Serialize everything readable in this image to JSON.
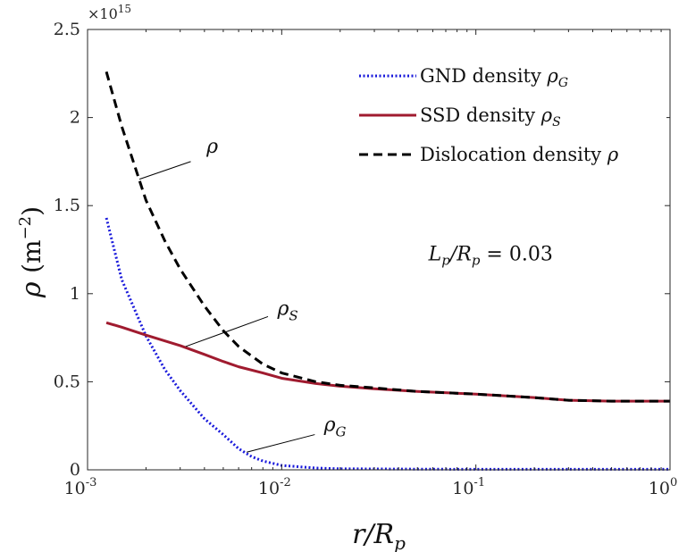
{
  "chart_data": {
    "type": "line",
    "xscale": "log",
    "xlim": [
      0.001,
      1
    ],
    "ylim": [
      0,
      2500000000000000
    ],
    "xticks": [
      {
        "value": 0.001,
        "base": "10",
        "exp": "-3"
      },
      {
        "value": 0.01,
        "base": "10",
        "exp": "-2"
      },
      {
        "value": 0.1,
        "base": "10",
        "exp": "-1"
      },
      {
        "value": 1,
        "base": "10",
        "exp": "0"
      }
    ],
    "yticks": [
      {
        "value": 0,
        "label": "0"
      },
      {
        "value": 500000000000000,
        "label": "0.5"
      },
      {
        "value": 1000000000000000,
        "label": "1"
      },
      {
        "value": 1500000000000000,
        "label": "1.5"
      },
      {
        "value": 2000000000000000,
        "label": "2"
      },
      {
        "value": 2500000000000000,
        "label": "2.5"
      }
    ],
    "y_multiplier": {
      "base": "×10",
      "exp": "15"
    },
    "xlabel": {
      "var": "r/R",
      "sub": "p"
    },
    "ylabel": {
      "var": "ρ",
      "unit": "(m",
      "exp": "−2",
      "close": ")"
    },
    "legend_position": "top-right",
    "series": [
      {
        "key": "gnd",
        "name": "GND density",
        "sym": "ρ",
        "sub": "G",
        "color": "#1a1adb",
        "style": "dotted",
        "x": [
          0.00125,
          0.0015,
          0.002,
          0.0025,
          0.003,
          0.004,
          0.005,
          0.006,
          0.007,
          0.008,
          0.01,
          0.015,
          0.02,
          0.05,
          0.1,
          0.3,
          1
        ],
        "y": [
          1430000000000000.0,
          1080000000000000.0,
          760000000000000.0,
          570000000000000.0,
          450000000000000.0,
          290000000000000.0,
          200000000000000.0,
          120000000000000.0,
          75000000000000.0,
          50000000000000.0,
          25000000000000.0,
          10000000000000.0,
          6000000000000.0,
          4000000000000.0,
          3000000000000.0,
          3000000000000.0,
          3000000000000.0
        ]
      },
      {
        "key": "ssd",
        "name": "SSD density",
        "sym": "ρ",
        "sub": "S",
        "color": "#a01b2f",
        "style": "solid",
        "x": [
          0.00125,
          0.0015,
          0.002,
          0.003,
          0.004,
          0.005,
          0.006,
          0.008,
          0.01,
          0.015,
          0.02,
          0.03,
          0.05,
          0.1,
          0.2,
          0.3,
          0.5,
          1
        ],
        "y": [
          835000000000000.0,
          810000000000000.0,
          765000000000000.0,
          705000000000000.0,
          655000000000000.0,
          615000000000000.0,
          585000000000000.0,
          550000000000000.0,
          520000000000000.0,
          490000000000000.0,
          475000000000000.0,
          460000000000000.0,
          445000000000000.0,
          430000000000000.0,
          410000000000000.0,
          395000000000000.0,
          390000000000000.0,
          390000000000000.0
        ]
      },
      {
        "key": "total",
        "name": "Dislocation density",
        "sym": "ρ",
        "sub": "",
        "color": "#000000",
        "style": "dashed",
        "x": [
          0.00125,
          0.0015,
          0.002,
          0.0025,
          0.003,
          0.004,
          0.005,
          0.006,
          0.008,
          0.01,
          0.015,
          0.02,
          0.03,
          0.05,
          0.1,
          0.2,
          0.3,
          0.5,
          1
        ],
        "y": [
          2260000000000000.0,
          1950000000000000.0,
          1530000000000000.0,
          1300000000000000.0,
          1140000000000000.0,
          930000000000000.0,
          790000000000000.0,
          700000000000000.0,
          600000000000000.0,
          550000000000000.0,
          500000000000000.0,
          480000000000000.0,
          465000000000000.0,
          445000000000000.0,
          430000000000000.0,
          410000000000000.0,
          395000000000000.0,
          390000000000000.0,
          390000000000000.0
        ]
      }
    ],
    "annotations": [
      {
        "key": "ann-rho",
        "sym": "ρ",
        "sub": "",
        "line_from": [
          0.00185,
          1650000000000000.0
        ],
        "line_to": [
          0.0034,
          1750000000000000.0
        ],
        "text_at": [
          0.0041,
          1800000000000000.0
        ]
      },
      {
        "key": "ann-rho-s",
        "sym": "ρ",
        "sub": "S",
        "line_from": [
          0.0032,
          700000000000000.0
        ],
        "line_to": [
          0.0085,
          870000000000000.0
        ],
        "text_at": [
          0.0095,
          880000000000000.0
        ]
      },
      {
        "key": "ann-rho-g",
        "sym": "ρ",
        "sub": "G",
        "line_from": [
          0.0066,
          100000000000000.0
        ],
        "line_to": [
          0.0148,
          200000000000000.0
        ],
        "text_at": [
          0.0165,
          220000000000000.0
        ]
      }
    ],
    "text_annotation": {
      "lhs": "L",
      "lhs_sub": "p",
      "mid": "/R",
      "mid_sub": "p",
      "eq": " = 0.03",
      "at": [
        0.057,
        1190000000000000.0
      ]
    }
  }
}
